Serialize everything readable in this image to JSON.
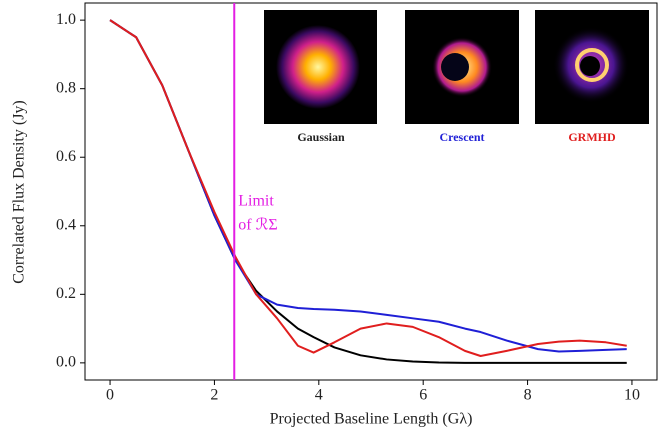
{
  "chart_data": {
    "type": "line",
    "x_label": "Projected Baseline Length (Gλ)",
    "y_label": "Correlated Flux Density (Jy)",
    "x": [
      0,
      0.5,
      1,
      1.5,
      2,
      2.4,
      2.8,
      3.2,
      3.6,
      3.9,
      4.3,
      4.8,
      5.3,
      5.8,
      6.3,
      6.8,
      7.1,
      7.6,
      8.2,
      8.6,
      9,
      9.5,
      9.9
    ],
    "series": [
      {
        "name": "Gaussian",
        "color": "#000000",
        "values": [
          1,
          0.95,
          0.81,
          0.62,
          0.43,
          0.3,
          0.21,
          0.15,
          0.1,
          0.075,
          0.045,
          0.022,
          0.01,
          0.004,
          0.001,
          0,
          0,
          0,
          0,
          0,
          0,
          0,
          0
        ]
      },
      {
        "name": "Crescent",
        "color": "#1f1fd6",
        "values": [
          1,
          0.95,
          0.81,
          0.62,
          0.43,
          0.3,
          0.2,
          0.17,
          0.16,
          0.157,
          0.155,
          0.15,
          0.14,
          0.13,
          0.12,
          0.1,
          0.09,
          0.065,
          0.04,
          0.033,
          0.035,
          0.038,
          0.04
        ]
      },
      {
        "name": "GRMHD",
        "color": "#e01e1e",
        "values": [
          1,
          0.95,
          0.81,
          0.62,
          0.44,
          0.31,
          0.2,
          0.13,
          0.05,
          0.03,
          0.06,
          0.1,
          0.115,
          0.105,
          0.075,
          0.035,
          0.02,
          0.035,
          0.055,
          0.062,
          0.065,
          0.06,
          0.05
        ]
      }
    ],
    "vline": {
      "x": 2.38,
      "color": "#e31ee3",
      "annotation": [
        "Limit",
        "of ℛΣ"
      ]
    },
    "xlim": [
      -0.48,
      10.48
    ],
    "ylim": [
      -0.05,
      1.05
    ],
    "xticks": [
      0,
      2,
      4,
      6,
      8,
      10
    ],
    "yticks": [
      {
        "value": 0,
        "label": "0.0"
      },
      0.2,
      0.4,
      0.6,
      0.8,
      {
        "value": 1,
        "label": "1.0"
      }
    ]
  }
}
